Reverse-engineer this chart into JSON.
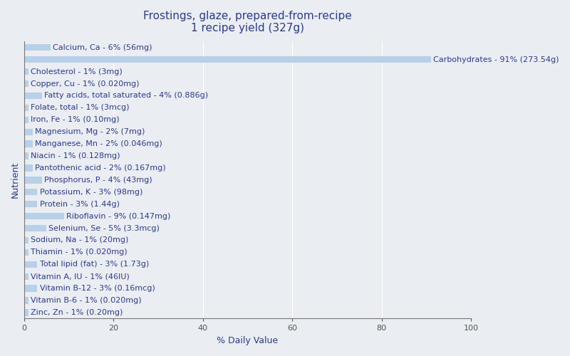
{
  "title": "Frostings, glaze, prepared-from-recipe\n1 recipe yield (327g)",
  "xlabel": "% Daily Value",
  "ylabel": "Nutrient",
  "background_color": "#eaedf2",
  "plot_bg_color": "#eaedf2",
  "bar_color": "#b8d0e8",
  "xlim": [
    0,
    100
  ],
  "nutrients": [
    {
      "label": "Calcium, Ca - 6% (56mg)",
      "value": 6
    },
    {
      "label": "Carbohydrates - 91% (273.54g)",
      "value": 91
    },
    {
      "label": "Cholesterol - 1% (3mg)",
      "value": 1
    },
    {
      "label": "Copper, Cu - 1% (0.020mg)",
      "value": 1
    },
    {
      "label": "Fatty acids, total saturated - 4% (0.886g)",
      "value": 4
    },
    {
      "label": "Folate, total - 1% (3mcg)",
      "value": 1
    },
    {
      "label": "Iron, Fe - 1% (0.10mg)",
      "value": 1
    },
    {
      "label": "Magnesium, Mg - 2% (7mg)",
      "value": 2
    },
    {
      "label": "Manganese, Mn - 2% (0.046mg)",
      "value": 2
    },
    {
      "label": "Niacin - 1% (0.128mg)",
      "value": 1
    },
    {
      "label": "Pantothenic acid - 2% (0.167mg)",
      "value": 2
    },
    {
      "label": "Phosphorus, P - 4% (43mg)",
      "value": 4
    },
    {
      "label": "Potassium, K - 3% (98mg)",
      "value": 3
    },
    {
      "label": "Protein - 3% (1.44g)",
      "value": 3
    },
    {
      "label": "Riboflavin - 9% (0.147mg)",
      "value": 9
    },
    {
      "label": "Selenium, Se - 5% (3.3mcg)",
      "value": 5
    },
    {
      "label": "Sodium, Na - 1% (20mg)",
      "value": 1
    },
    {
      "label": "Thiamin - 1% (0.020mg)",
      "value": 1
    },
    {
      "label": "Total lipid (fat) - 3% (1.73g)",
      "value": 3
    },
    {
      "label": "Vitamin A, IU - 1% (46IU)",
      "value": 1
    },
    {
      "label": "Vitamin B-12 - 3% (0.16mcg)",
      "value": 3
    },
    {
      "label": "Vitamin B-6 - 1% (0.020mg)",
      "value": 1
    },
    {
      "label": "Zinc, Zn - 1% (0.20mg)",
      "value": 1
    }
  ],
  "title_fontsize": 11,
  "bar_label_fontsize": 8,
  "axis_label_fontsize": 9,
  "tick_fontsize": 8,
  "label_color": "#2b3a8a",
  "title_color": "#2b3a8a",
  "tick_color": "#555555",
  "grid_color": "#ffffff",
  "spine_color": "#777777"
}
